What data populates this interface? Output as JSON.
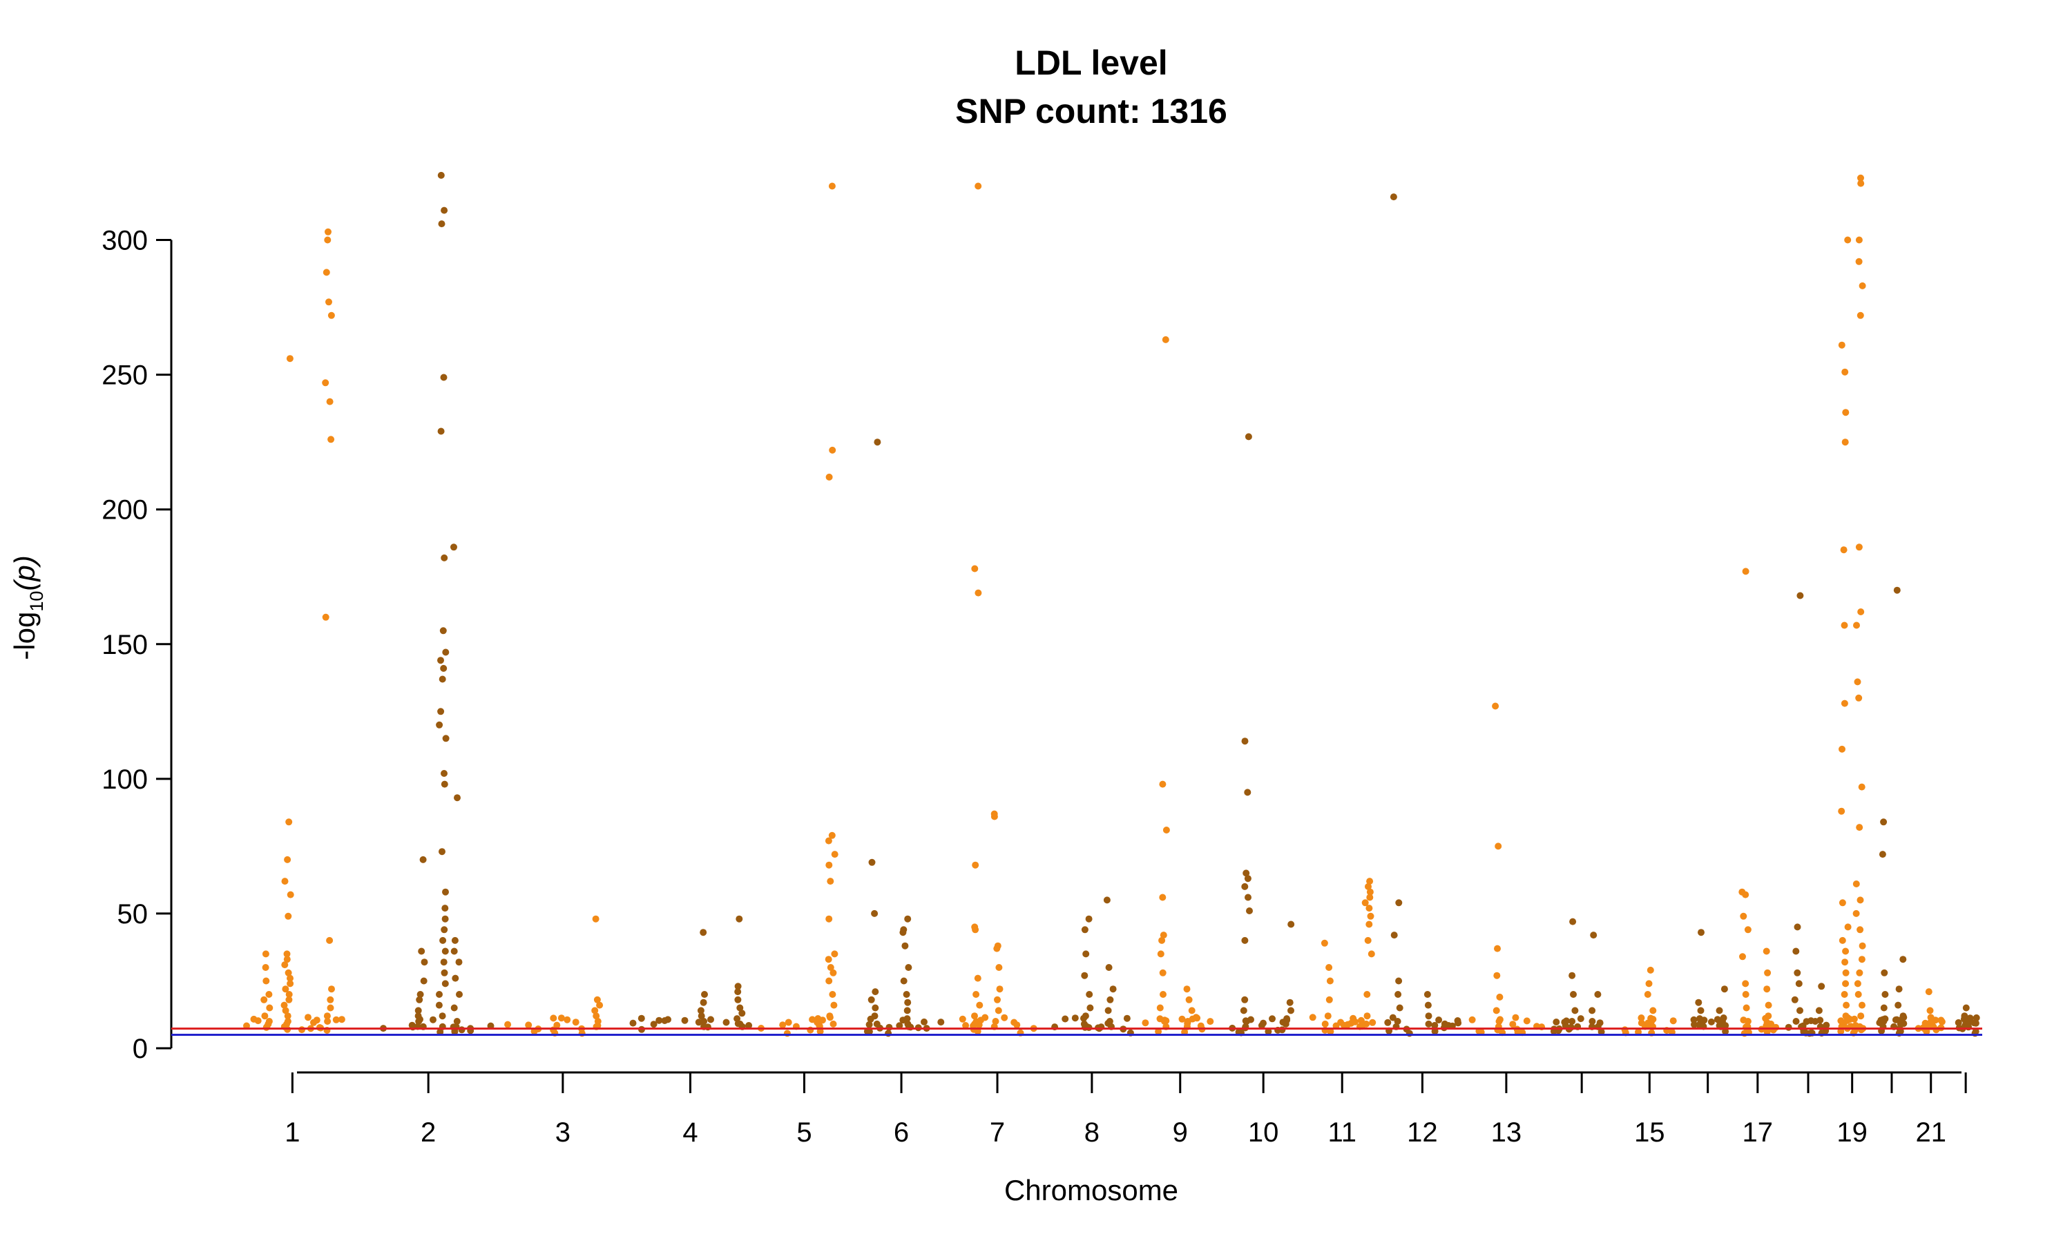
{
  "chart_data": {
    "type": "scatter",
    "title": "LDL level",
    "subtitle": "SNP count: 1316",
    "xlabel": "Chromosome",
    "ylabel": {
      "prefix": "-log",
      "subscript": "10",
      "body": "(p)"
    },
    "ylim": [
      0,
      325
    ],
    "yticks": [
      0,
      50,
      100,
      150,
      200,
      250,
      300
    ],
    "xlim": [
      0,
      1
    ],
    "grid": false,
    "legend": "none",
    "colors": {
      "odd": "#F28A17",
      "even": "#9A5A0F",
      "threshold_suggestive": "#2222CC",
      "threshold_genomewide": "#DD2222"
    },
    "thresholds": [
      {
        "color": "#2222CC",
        "value": 5.0
      },
      {
        "color": "#DD2222",
        "value": 7.3
      }
    ],
    "chromosomes": [
      {
        "chr": 1,
        "label": "1",
        "start": 0.0,
        "end": 0.162
      },
      {
        "chr": 2,
        "label": "2",
        "start": 0.162,
        "end": 0.318
      },
      {
        "chr": 3,
        "label": "3",
        "start": 0.318,
        "end": 0.448
      },
      {
        "chr": 4,
        "label": "4",
        "start": 0.448,
        "end": 0.569
      },
      {
        "chr": 5,
        "label": "5",
        "start": 0.569,
        "end": 0.688
      },
      {
        "chr": 6,
        "label": "6",
        "start": 0.688,
        "end": 0.8
      },
      {
        "chr": 7,
        "label": "7",
        "start": 0.8,
        "end": 0.905
      },
      {
        "chr": 8,
        "label": "8",
        "start": 0.905,
        "end": 1.0
      }
    ],
    "chromosomes_rest": [
      {
        "chr": 9,
        "label": "9"
      },
      {
        "chr": 10,
        "label": "10"
      },
      {
        "chr": 11,
        "label": "11"
      },
      {
        "chr": 12,
        "label": "12"
      },
      {
        "chr": 13,
        "label": "13"
      },
      {
        "chr": 14,
        "label": ""
      },
      {
        "chr": 15,
        "label": "15"
      },
      {
        "chr": 16,
        "label": ""
      },
      {
        "chr": 17,
        "label": "17"
      },
      {
        "chr": 18,
        "label": ""
      },
      {
        "chr": 19,
        "label": "19"
      },
      {
        "chr": 20,
        "label": ""
      },
      {
        "chr": 21,
        "label": "21"
      },
      {
        "chr": 22,
        "label": ""
      }
    ],
    "peaks": [
      {
        "chr": 1,
        "pos": 0.46,
        "values": [
          256,
          84,
          70,
          62,
          57,
          49,
          35,
          33,
          31,
          28,
          26,
          24,
          22,
          20,
          18,
          16,
          14,
          12,
          10,
          9,
          8,
          7
        ]
      },
      {
        "chr": 1,
        "pos": 0.78,
        "values": [
          303,
          300,
          288,
          277,
          272,
          247,
          240,
          226,
          160,
          40,
          22,
          18,
          15,
          12,
          10
        ]
      },
      {
        "chr": 1,
        "pos": 0.3,
        "values": [
          35,
          30,
          25,
          20,
          18,
          15,
          12,
          10,
          9,
          8
        ]
      },
      {
        "chr": 2,
        "pos": 0.45,
        "values": [
          70,
          36,
          32,
          25,
          20,
          18,
          14,
          12,
          10,
          8
        ]
      },
      {
        "chr": 2,
        "pos": 0.6,
        "values": [
          324,
          311,
          306,
          249,
          229,
          182,
          155,
          147,
          144,
          141,
          137,
          125,
          120,
          115,
          102,
          98,
          73,
          58,
          52,
          48,
          44,
          40,
          36,
          32,
          28,
          24,
          20,
          16,
          12,
          8
        ]
      },
      {
        "chr": 2,
        "pos": 0.7,
        "values": [
          186,
          93,
          40,
          36,
          32,
          26,
          20,
          15,
          10,
          8
        ]
      },
      {
        "chr": 3,
        "pos": 0.78,
        "values": [
          48,
          18,
          16,
          14,
          12,
          10,
          8
        ]
      },
      {
        "chr": 4,
        "pos": 0.6,
        "values": [
          43,
          20,
          17,
          14,
          12,
          10,
          8
        ]
      },
      {
        "chr": 4,
        "pos": 0.88,
        "values": [
          48,
          23,
          21,
          18,
          15,
          13,
          11,
          9,
          8
        ]
      },
      {
        "chr": 5,
        "pos": 0.78,
        "values": [
          320,
          222,
          212,
          79,
          77,
          72,
          68,
          62,
          48,
          35,
          33,
          30,
          28,
          25,
          20,
          16,
          12,
          9
        ]
      },
      {
        "chr": 6,
        "pos": 0.22,
        "values": [
          225,
          69,
          50,
          21,
          18,
          15,
          12,
          9
        ]
      },
      {
        "chr": 6,
        "pos": 0.55,
        "values": [
          48,
          44,
          43,
          38,
          30,
          25,
          20,
          17,
          14,
          11,
          9,
          8
        ]
      },
      {
        "chr": 7,
        "pos": 0.3,
        "values": [
          320,
          178,
          169,
          68,
          45,
          44,
          26,
          20,
          16,
          12,
          9
        ]
      },
      {
        "chr": 7,
        "pos": 0.5,
        "values": [
          87,
          86,
          38,
          37,
          30,
          22,
          18,
          14,
          10,
          8
        ]
      },
      {
        "chr": 8,
        "pos": 0.45,
        "values": [
          48,
          44,
          35,
          27,
          20,
          15,
          12,
          9
        ]
      },
      {
        "chr": 8,
        "pos": 0.7,
        "values": [
          55,
          30,
          22,
          18,
          14,
          10,
          8
        ]
      }
    ],
    "peaks_rest": [
      {
        "chr": 9,
        "pos": 0.3,
        "values": [
          263,
          98,
          81,
          56,
          42,
          40,
          35,
          28,
          20,
          15,
          10,
          8
        ]
      },
      {
        "chr": 9,
        "pos": 0.6,
        "values": [
          22,
          18,
          14,
          10,
          8
        ]
      },
      {
        "chr": 10,
        "pos": 0.3,
        "values": [
          227,
          114,
          95,
          65,
          63,
          60,
          56,
          51,
          40,
          18,
          14,
          10,
          8
        ]
      },
      {
        "chr": 10,
        "pos": 0.8,
        "values": [
          46,
          17,
          14,
          11,
          9
        ]
      },
      {
        "chr": 11,
        "pos": 0.3,
        "values": [
          39,
          30,
          25,
          18,
          12,
          9
        ]
      },
      {
        "chr": 11,
        "pos": 0.85,
        "values": [
          62,
          60,
          58,
          56,
          54,
          52,
          49,
          46,
          40,
          35,
          20,
          12,
          9
        ]
      },
      {
        "chr": 12,
        "pos": 0.2,
        "values": [
          316,
          54,
          42,
          25,
          20,
          15,
          10,
          8
        ]
      },
      {
        "chr": 12,
        "pos": 0.6,
        "values": [
          20,
          16,
          12,
          9
        ]
      },
      {
        "chr": 13,
        "pos": 0.4,
        "values": [
          127,
          75,
          37,
          27,
          19,
          14,
          10,
          8
        ]
      },
      {
        "chr": 14,
        "pos": 0.4,
        "values": [
          47,
          27,
          20,
          14,
          10,
          8
        ]
      },
      {
        "chr": 14,
        "pos": 0.7,
        "values": [
          42,
          20,
          14,
          10,
          8
        ]
      },
      {
        "chr": 15,
        "pos": 0.5,
        "values": [
          29,
          24,
          20,
          14,
          10,
          8
        ]
      },
      {
        "chr": 16,
        "pos": 0.3,
        "values": [
          43,
          17,
          14,
          11,
          9
        ]
      },
      {
        "chr": 16,
        "pos": 0.8,
        "values": [
          22,
          14,
          10,
          8
        ]
      },
      {
        "chr": 17,
        "pos": 0.25,
        "values": [
          177,
          58,
          57,
          49,
          44,
          34,
          24,
          20,
          15,
          10,
          8
        ]
      },
      {
        "chr": 17,
        "pos": 0.7,
        "values": [
          36,
          28,
          22,
          16,
          12,
          9
        ]
      },
      {
        "chr": 18,
        "pos": 0.3,
        "values": [
          168,
          45,
          36,
          28,
          24,
          18,
          14,
          10,
          8
        ]
      },
      {
        "chr": 18,
        "pos": 0.7,
        "values": [
          23,
          14,
          10,
          8
        ]
      },
      {
        "chr": 19,
        "pos": 0.3,
        "values": [
          300,
          261,
          251,
          236,
          225,
          185,
          157,
          128,
          111,
          88,
          54,
          45,
          40,
          36,
          32,
          28,
          24,
          20,
          16,
          12,
          8
        ]
      },
      {
        "chr": 19,
        "pos": 0.7,
        "values": [
          323,
          321,
          300,
          292,
          283,
          272,
          186,
          162,
          157,
          136,
          130,
          97,
          82,
          61,
          55,
          50,
          44,
          38,
          33,
          28,
          24,
          20,
          16,
          12,
          8
        ]
      },
      {
        "chr": 20,
        "pos": 0.3,
        "values": [
          84,
          72,
          28,
          20,
          15,
          10,
          8
        ]
      },
      {
        "chr": 20,
        "pos": 0.7,
        "values": [
          170,
          33,
          22,
          16,
          12,
          9
        ]
      },
      {
        "chr": 21,
        "pos": 0.5,
        "values": [
          21,
          14,
          10,
          8
        ]
      },
      {
        "chr": 22,
        "pos": 0.5,
        "values": [
          15,
          12,
          10,
          8
        ]
      }
    ]
  }
}
